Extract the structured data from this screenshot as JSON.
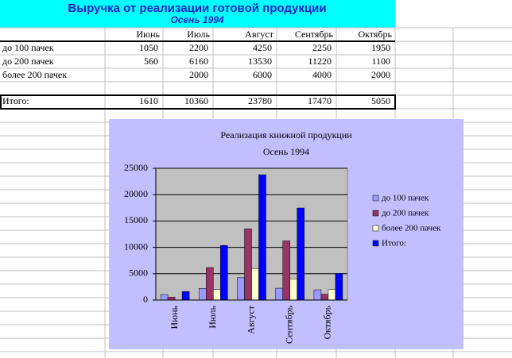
{
  "sheet": {
    "title": "Выручка от  реализации  готовой  продукции",
    "subtitle": "Осень 1994",
    "columns": [
      "Июнь",
      "Июль",
      "Август",
      "Сентябрь",
      "Октябрь"
    ],
    "rows": [
      {
        "label": "до 100 пачек",
        "values": [
          1050,
          2200,
          4250,
          2250,
          1950
        ]
      },
      {
        "label": "до 200 пачек",
        "values": [
          560,
          6160,
          13530,
          11220,
          1100
        ]
      },
      {
        "label": "более 200 пачек",
        "values": [
          null,
          2000,
          6000,
          4000,
          2000
        ]
      }
    ],
    "total": {
      "label": "Итого:",
      "values": [
        1610,
        10360,
        23780,
        17470,
        5050
      ]
    }
  },
  "chart_data": {
    "type": "bar",
    "title": "Реализация книжной продукции",
    "subtitle": "Осень   1994",
    "categories": [
      "Июнь",
      "Июль",
      "Август",
      "Сентябрь",
      "Октябрь"
    ],
    "series": [
      {
        "name": "до 100 пачек",
        "color": "#9999ff",
        "values": [
          1050,
          2200,
          4250,
          2250,
          1950
        ]
      },
      {
        "name": "до 200 пачек",
        "color": "#993366",
        "values": [
          560,
          6160,
          13530,
          11220,
          1100
        ]
      },
      {
        "name": "более 200 пачек",
        "color": "#ffffcc",
        "values": [
          null,
          2000,
          6000,
          4000,
          2000
        ]
      },
      {
        "name": "Итого:",
        "color": "#0000ff",
        "values": [
          1610,
          10360,
          23780,
          17470,
          5050
        ]
      }
    ],
    "ylim": [
      0,
      25000
    ],
    "yticks": [
      0,
      5000,
      10000,
      15000,
      20000,
      25000
    ],
    "grid": true,
    "legend": "right"
  }
}
